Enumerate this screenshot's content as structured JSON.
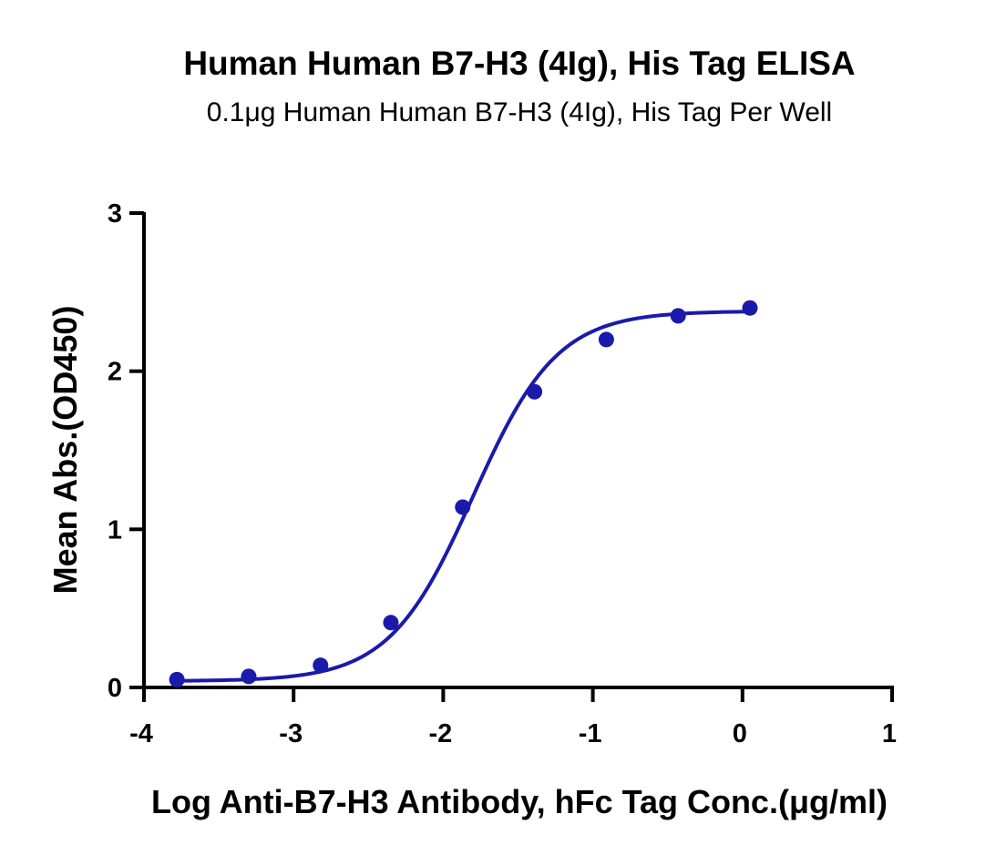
{
  "chart_data": {
    "type": "scatter",
    "title": "Human Human B7-H3 (4Ig), His Tag ELISA",
    "subtitle": "0.1μg Human Human B7-H3 (4Ig), His Tag Per Well",
    "xlabel": "Log Anti-B7-H3 Antibody, hFc Tag Conc.(μg/ml)",
    "ylabel": "Mean Abs.(OD450)",
    "xlim": [
      -4,
      1
    ],
    "ylim": [
      0,
      3
    ],
    "x_ticks": [
      -4,
      -3,
      -2,
      -1,
      0,
      1
    ],
    "y_ticks": [
      0,
      1,
      2,
      3
    ],
    "grid": false,
    "color": "#1a1aab",
    "series": [
      {
        "x": [
          -3.78,
          -3.3,
          -2.82,
          -2.35,
          -1.87,
          -1.39,
          -0.91,
          -0.43,
          0.05
        ],
        "y": [
          0.05,
          0.07,
          0.14,
          0.41,
          1.14,
          1.87,
          2.2,
          2.35,
          2.4
        ]
      }
    ],
    "fit": {
      "model": "4PL",
      "bottom": 0.04,
      "top": 2.38,
      "logEC50": -1.8,
      "hill": 1.55
    }
  }
}
